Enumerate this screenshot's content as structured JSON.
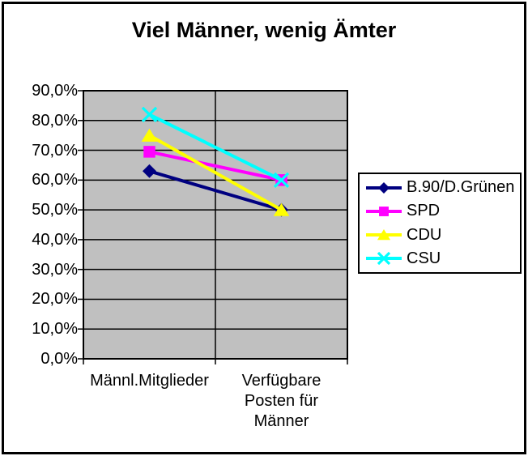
{
  "chart": {
    "title": "Viel Männer, wenig Ämter"
  },
  "chart_data": {
    "type": "line",
    "title": "Viel Männer, wenig Ämter",
    "categories": [
      "Männl.Mitglieder",
      "Verfügbare Posten für Männer"
    ],
    "category_lines": [
      [
        "Männl.Mitglieder"
      ],
      [
        "Verfügbare",
        "Posten für",
        "Männer"
      ]
    ],
    "series": [
      {
        "name": "B.90/D.Grünen",
        "values": [
          63.0,
          50.0
        ],
        "color": "#000080",
        "marker": "diamond"
      },
      {
        "name": "SPD",
        "values": [
          69.5,
          60.0
        ],
        "color": "#FF00FF",
        "marker": "square"
      },
      {
        "name": "CDU",
        "values": [
          75.0,
          50.0
        ],
        "color": "#FFFF00",
        "marker": "triangle"
      },
      {
        "name": "CSU",
        "values": [
          82.0,
          60.0
        ],
        "color": "#00FFFF",
        "marker": "x"
      }
    ],
    "ylim": [
      0,
      90
    ],
    "y_tick_step": 10,
    "y_tick_labels": [
      "0,0%",
      "10,0%",
      "20,0%",
      "30,0%",
      "40,0%",
      "50,0%",
      "60,0%",
      "70,0%",
      "80,0%",
      "90,0%"
    ],
    "grid": true,
    "legend_position": "right",
    "plot_bg_color": "#C0C0C0",
    "axis_color": "#000000",
    "chart_bg_color": "#FFFFFF"
  }
}
